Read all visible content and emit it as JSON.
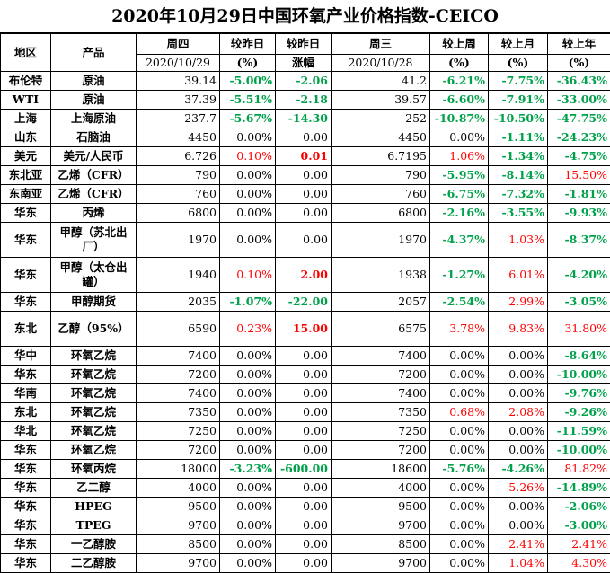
{
  "title": "2020年10月29日中国环氧产业价格指数-CEICO",
  "columns": {
    "region": "地区",
    "product": "产品",
    "thu": "周四",
    "thu_date": "2020/10/29",
    "chg_pct": "较昨日",
    "chg_pct_unit": "(%)",
    "chg_amt": "较昨日",
    "chg_amt_unit": "涨幅",
    "wed": "周三",
    "wed_date": "2020/10/28",
    "wk": "较上周",
    "wk_unit": "(%)",
    "mo": "较上月",
    "mo_unit": "(%)",
    "yr": "较上年",
    "yr_unit": "(%)"
  },
  "colors": {
    "up": "#ff0000",
    "down": "#00a14b",
    "flat": "#000000"
  },
  "rows": [
    {
      "region": "布伦特",
      "product": "原油",
      "thu": "39.14",
      "d": "-5.00%",
      "da": "-2.06",
      "wed": "41.2",
      "w": "-6.21%",
      "m": "-7.75%",
      "y": "-36.43%"
    },
    {
      "region": "WTI",
      "product": "原油",
      "thu": "37.39",
      "d": "-5.51%",
      "da": "-2.18",
      "wed": "39.57",
      "w": "-6.60%",
      "m": "-7.91%",
      "y": "-33.00%"
    },
    {
      "region": "上海",
      "product": "上海原油",
      "thu": "237.7",
      "d": "-5.67%",
      "da": "-14.30",
      "wed": "252",
      "w": "-10.87%",
      "m": "-10.50%",
      "y": "-47.75%"
    },
    {
      "region": "山东",
      "product": "石脑油",
      "thu": "4450",
      "d": "0.00%",
      "da": "0.00",
      "wed": "4450",
      "w": "0.00%",
      "m": "-1.11%",
      "y": "-24.23%"
    },
    {
      "region": "美元",
      "product": "美元/人民币",
      "thu": "6.726",
      "d": "0.10%",
      "da": "0.01",
      "wed": "6.7195",
      "w": "1.06%",
      "m": "-1.34%",
      "y": "-4.75%"
    },
    {
      "region": "东北亚",
      "product": "乙烯（CFR）",
      "thu": "790",
      "d": "0.00%",
      "da": "0.00",
      "wed": "790",
      "w": "-5.95%",
      "m": "-8.14%",
      "y": "15.50%"
    },
    {
      "region": "东南亚",
      "product": "乙烯（CFR）",
      "thu": "760",
      "d": "0.00%",
      "da": "0.00",
      "wed": "760",
      "w": "-6.75%",
      "m": "-7.32%",
      "y": "-1.81%"
    },
    {
      "region": "华东",
      "product": "丙烯",
      "thu": "6800",
      "d": "0.00%",
      "da": "0.00",
      "wed": "6800",
      "w": "-2.16%",
      "m": "-3.55%",
      "y": "-9.93%"
    },
    {
      "region": "华东",
      "product": "甲醇（苏北出厂）",
      "thu": "1970",
      "d": "0.00%",
      "da": "0.00",
      "wed": "1970",
      "w": "-4.37%",
      "m": "1.03%",
      "y": "-8.37%",
      "tall": true
    },
    {
      "region": "华东",
      "product": "甲醇（太仓出罐）",
      "thu": "1940",
      "d": "0.10%",
      "da": "2.00",
      "wed": "1938",
      "w": "-1.27%",
      "m": "6.01%",
      "y": "-4.20%",
      "tall": true
    },
    {
      "region": "华东",
      "product": "甲醇期货",
      "thu": "2035",
      "d": "-1.07%",
      "da": "-22.00",
      "wed": "2057",
      "w": "-2.54%",
      "m": "2.99%",
      "y": "-3.05%"
    },
    {
      "region": "东北",
      "product": "乙醇（95%）",
      "thu": "6590",
      "d": "0.23%",
      "da": "15.00",
      "wed": "6575",
      "w": "3.78%",
      "m": "9.83%",
      "y": "31.80%",
      "tall": true
    },
    {
      "region": "华中",
      "product": "环氧乙烷",
      "thu": "7400",
      "d": "0.00%",
      "da": "0.00",
      "wed": "7400",
      "w": "0.00%",
      "m": "0.00%",
      "y": "-8.64%"
    },
    {
      "region": "华东",
      "product": "环氧乙烷",
      "thu": "7200",
      "d": "0.00%",
      "da": "0.00",
      "wed": "7200",
      "w": "0.00%",
      "m": "0.00%",
      "y": "-10.00%"
    },
    {
      "region": "华南",
      "product": "环氧乙烷",
      "thu": "7400",
      "d": "0.00%",
      "da": "0.00",
      "wed": "7400",
      "w": "0.00%",
      "m": "0.00%",
      "y": "-9.76%"
    },
    {
      "region": "东北",
      "product": "环氧乙烷",
      "thu": "7350",
      "d": "0.00%",
      "da": "0.00",
      "wed": "7350",
      "w": "0.68%",
      "m": "2.08%",
      "y": "-9.26%"
    },
    {
      "region": "华北",
      "product": "环氧乙烷",
      "thu": "7250",
      "d": "0.00%",
      "da": "0.00",
      "wed": "7250",
      "w": "0.00%",
      "m": "0.00%",
      "y": "-11.59%"
    },
    {
      "region": "华东",
      "product": "环氧乙烷",
      "thu": "7200",
      "d": "0.00%",
      "da": "0.00",
      "wed": "7200",
      "w": "0.00%",
      "m": "0.00%",
      "y": "-10.00%"
    },
    {
      "region": "华东",
      "product": "环氧丙烷",
      "thu": "18000",
      "d": "-3.23%",
      "da": "-600.00",
      "wed": "18600",
      "w": "-5.76%",
      "m": "-4.26%",
      "y": "81.82%"
    },
    {
      "region": "华东",
      "product": "乙二醇",
      "thu": "4000",
      "d": "0.00%",
      "da": "0.00",
      "wed": "4000",
      "w": "0.00%",
      "m": "5.26%",
      "y": "-14.89%"
    },
    {
      "region": "华东",
      "product": "HPEG",
      "thu": "9500",
      "d": "0.00%",
      "da": "0.00",
      "wed": "9500",
      "w": "0.00%",
      "m": "0.00%",
      "y": "-2.06%"
    },
    {
      "region": "华东",
      "product": "TPEG",
      "thu": "9700",
      "d": "0.00%",
      "da": "0.00",
      "wed": "9700",
      "w": "0.00%",
      "m": "0.00%",
      "y": "-3.00%"
    },
    {
      "region": "华东",
      "product": "一乙醇胺",
      "thu": "8500",
      "d": "0.00%",
      "da": "0.00",
      "wed": "8500",
      "w": "0.00%",
      "m": "2.41%",
      "y": "2.41%"
    },
    {
      "region": "华东",
      "product": "二乙醇胺",
      "thu": "9700",
      "d": "0.00%",
      "da": "0.00",
      "wed": "9700",
      "w": "0.00%",
      "m": "1.04%",
      "y": "4.30%"
    }
  ]
}
